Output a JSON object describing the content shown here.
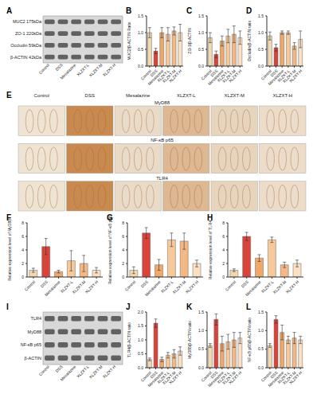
{
  "blots": [
    {
      "panel": "A",
      "bands": [
        "MUC2 175kDa",
        "ZO-1 220kDa",
        "Occludin 59kDa",
        "β-ACTIN 42kDa"
      ],
      "lanes": [
        "Control",
        "DSS",
        "Mesalazine",
        "XLZXT-L",
        "XLZXT-M",
        "XLZXT-H"
      ]
    },
    {
      "panel": "I",
      "bands": [
        "TLR4",
        "MyD88",
        "NF-κB p65",
        "β-ACTIN"
      ],
      "lanes": [
        "Control",
        "DSS",
        "Mesalazine",
        "XLZXT-L",
        "XLZXT-M",
        "XLZXT-H"
      ]
    }
  ],
  "ihc": {
    "panel": "E",
    "rows": [
      "MyD88",
      "NF-κB p65",
      "TLR4"
    ],
    "columns": [
      "Control",
      "DSS",
      "Mesalazine",
      "XLZXT-L",
      "XLZXT-M",
      "XLZXT-H"
    ]
  },
  "chart_data": [
    {
      "panel": "B",
      "type": "bar",
      "y_label": "MUC2/β-ACTIN Ratio",
      "categories": [
        "Control",
        "DSS",
        "Mesalazine",
        "XLZXT-L",
        "XLZXT-M",
        "XLZXT-H"
      ],
      "values": [
        1.0,
        0.45,
        1.0,
        0.95,
        1.05,
        1.0
      ],
      "errors": [
        0.15,
        0.08,
        0.15,
        0.2,
        0.12,
        0.25
      ],
      "colors": [
        "#f2d9b0",
        "#d9433a",
        "#f0a86a",
        "#f7c99a",
        "#f5b885",
        "#fbe0c4"
      ],
      "ylim": [
        0,
        1.5
      ],
      "yticks": [
        {
          "value": 0,
          "label": "0.0"
        },
        0.5,
        {
          "value": 1,
          "label": "1.0"
        },
        1.5
      ]
    },
    {
      "panel": "C",
      "type": "bar",
      "y_label": "ZO-1/β-ACTIN",
      "categories": [
        "Control",
        "DSS",
        "Mesalazine",
        "XLZXT-L",
        "XLZXT-M",
        "XLZXT-H"
      ],
      "values": [
        0.85,
        0.35,
        0.75,
        0.9,
        0.95,
        0.85
      ],
      "errors": [
        0.15,
        0.1,
        0.15,
        0.2,
        0.25,
        0.2
      ],
      "colors": [
        "#f2d9b0",
        "#d9433a",
        "#f0a86a",
        "#f7c99a",
        "#f5b885",
        "#fbe0c4"
      ],
      "ylim": [
        0,
        1.5
      ],
      "yticks": [
        {
          "value": 0,
          "label": "0.0"
        },
        0.5,
        {
          "value": 1,
          "label": "1.0"
        },
        1.5
      ]
    },
    {
      "panel": "D",
      "type": "bar",
      "y_label": "Occludin/β-ACTIN ratio",
      "categories": [
        "Control",
        "DSS",
        "Mesalazine",
        "XLZXT-L",
        "XLZXT-M",
        "XLZXT-H"
      ],
      "values": [
        0.9,
        0.55,
        1.0,
        1.0,
        0.6,
        0.8
      ],
      "errors": [
        0.12,
        0.1,
        0.05,
        0.05,
        0.1,
        0.25
      ],
      "colors": [
        "#f2d9b0",
        "#d9433a",
        "#f0a86a",
        "#f7c99a",
        "#f5b885",
        "#fbe0c4"
      ],
      "ylim": [
        0,
        1.5
      ],
      "yticks": [
        {
          "value": 0,
          "label": "0.0"
        },
        0.5,
        {
          "value": 1,
          "label": "1.0"
        },
        1.5
      ]
    },
    {
      "panel": "F",
      "type": "bar",
      "y_label": "Relative expression level of MyD88",
      "categories": [
        "Control",
        "DSS",
        "Mesalazine",
        "XLZXT-L",
        "XLZXT-M",
        "XLZXT-H"
      ],
      "values": [
        1.0,
        4.5,
        0.8,
        2.4,
        2.0,
        1.0
      ],
      "errors": [
        0.3,
        1.2,
        0.2,
        1.5,
        1.2,
        0.4
      ],
      "colors": [
        "#f2d9b0",
        "#d9433a",
        "#f0a86a",
        "#f7c99a",
        "#f5b885",
        "#fbe0c4"
      ],
      "ylim": [
        0,
        8
      ],
      "yticks": [
        0,
        2,
        4,
        6,
        8
      ]
    },
    {
      "panel": "G",
      "type": "bar",
      "y_label": "Relative expression level of NF-κB p65",
      "categories": [
        "Control",
        "DSS",
        "Mesalazine",
        "XLZXT-L",
        "XLZXT-M",
        "XLZXT-H"
      ],
      "values": [
        1.0,
        6.5,
        1.8,
        5.5,
        5.3,
        2.0
      ],
      "errors": [
        0.5,
        0.8,
        0.8,
        1.0,
        1.2,
        0.5
      ],
      "colors": [
        "#f2d9b0",
        "#d9433a",
        "#f0a86a",
        "#f7c99a",
        "#f5b885",
        "#fbe0c4"
      ],
      "ylim": [
        0,
        8
      ],
      "yticks": [
        0,
        2,
        4,
        6,
        8
      ]
    },
    {
      "panel": "H",
      "type": "bar",
      "y_label": "Relative expression level of TLR4",
      "categories": [
        "Control",
        "DSS",
        "Mesalazine",
        "XLZXT-L",
        "XLZXT-M",
        "XLZXT-H"
      ],
      "values": [
        1.0,
        6.0,
        2.8,
        5.5,
        1.8,
        2.0
      ],
      "errors": [
        0.2,
        0.6,
        0.5,
        0.4,
        0.4,
        0.5
      ],
      "colors": [
        "#f2d9b0",
        "#d9433a",
        "#f0a86a",
        "#f7c99a",
        "#f5b885",
        "#fbe0c4"
      ],
      "ylim": [
        0,
        8
      ],
      "yticks": [
        0,
        2,
        4,
        6,
        8
      ]
    },
    {
      "panel": "J",
      "type": "bar",
      "y_label": "TLR4/β-ACTIN ratio",
      "categories": [
        "Control",
        "DSS",
        "Mesalazine",
        "XLZXT-L",
        "XLZXT-M",
        "XLZXT-H"
      ],
      "values": [
        0.3,
        1.6,
        0.3,
        0.45,
        0.5,
        0.6
      ],
      "errors": [
        0.05,
        0.15,
        0.08,
        0.1,
        0.15,
        0.15
      ],
      "colors": [
        "#f2d9b0",
        "#d9433a",
        "#f0a86a",
        "#f7c99a",
        "#f5b885",
        "#fbe0c4"
      ],
      "ylim": [
        0,
        2
      ],
      "yticks": [
        {
          "value": 0,
          "label": "0.0"
        },
        0.5,
        {
          "value": 1,
          "label": "1.0"
        },
        1.5,
        {
          "value": 2,
          "label": "2.0"
        }
      ]
    },
    {
      "panel": "K",
      "type": "bar",
      "y_label": "MyD88/β-ACTIN ratio",
      "categories": [
        "Control",
        "DSS",
        "Mesalazine",
        "XLZXT-L",
        "XLZXT-M",
        "XLZXT-H"
      ],
      "values": [
        0.6,
        1.3,
        0.65,
        0.7,
        0.75,
        0.8
      ],
      "errors": [
        0.05,
        0.15,
        0.2,
        0.2,
        0.2,
        0.15
      ],
      "colors": [
        "#f2d9b0",
        "#d9433a",
        "#f0a86a",
        "#f7c99a",
        "#f5b885",
        "#fbe0c4"
      ],
      "ylim": [
        0,
        1.5
      ],
      "yticks": [
        {
          "value": 0,
          "label": "0.0"
        },
        0.5,
        {
          "value": 1,
          "label": "1.0"
        },
        1.5
      ]
    },
    {
      "panel": "L",
      "type": "bar",
      "y_label": "NF-κB p65/β-ACTIN ratio",
      "categories": [
        "Control",
        "DSS",
        "Mesalazine",
        "XLZXT-L",
        "XLZXT-M",
        "XLZXT-H"
      ],
      "values": [
        0.6,
        1.3,
        0.95,
        0.75,
        0.8,
        0.75
      ],
      "errors": [
        0.05,
        0.1,
        0.2,
        0.1,
        0.15,
        0.1
      ],
      "colors": [
        "#f2d9b0",
        "#d9433a",
        "#f0a86a",
        "#f7c99a",
        "#f5b885",
        "#fbe0c4"
      ],
      "ylim": [
        0,
        1.5
      ],
      "yticks": [
        {
          "value": 0,
          "label": "0.0"
        },
        0.5,
        {
          "value": 1,
          "label": "1.0"
        },
        1.5
      ]
    }
  ]
}
